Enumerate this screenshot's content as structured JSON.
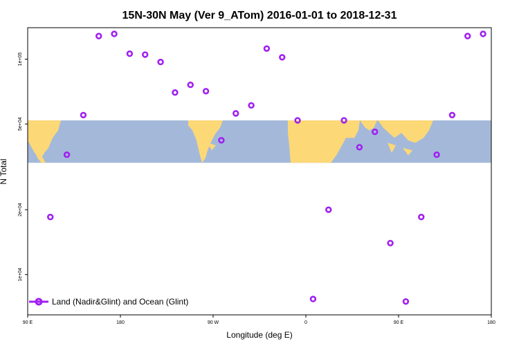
{
  "chart_data": {
    "type": "scatter",
    "title": "15N-30N May (Ver 9_ATom)   2016-01-01 to 2018-12-31",
    "xlabel": "Longitude (deg E)",
    "ylabel": "N Total",
    "x_ticks": [
      {
        "value": 90,
        "label": "90 E"
      },
      {
        "value": 180,
        "label": "180"
      },
      {
        "value": 270,
        "label": "90 W"
      },
      {
        "value": 360,
        "label": "0"
      },
      {
        "value": 450,
        "label": "90 E"
      },
      {
        "value": 540,
        "label": "180"
      }
    ],
    "xlim": [
      90,
      540
    ],
    "y_scale": "log",
    "y_ticks": [
      {
        "value": 10000,
        "label": "1e+04"
      },
      {
        "value": 20000,
        "label": "2e+04"
      },
      {
        "value": 50000,
        "label": "5e+04"
      },
      {
        "value": 100000,
        "label": "1e+05"
      }
    ],
    "ylim": [
      6500,
      140000
    ],
    "map_band": {
      "y_range": [
        33000,
        52000
      ],
      "ocean_color": "#a4b9da",
      "land_color": "#fdd876"
    },
    "series": [
      {
        "name": "Land (Nadir&Glint) and Ocean (Glint)",
        "color": "#a020f0",
        "x": [
          112,
          128,
          144,
          159,
          174,
          189,
          204,
          219,
          233,
          248,
          263,
          278,
          292,
          307,
          322,
          337,
          352,
          367,
          382,
          397,
          412,
          427,
          442,
          457,
          472,
          487,
          502,
          517,
          532
        ],
        "y": [
          18500,
          36000,
          55000,
          128000,
          131000,
          106000,
          105000,
          97000,
          70000,
          76000,
          71000,
          42000,
          56000,
          61000,
          112000,
          102000,
          52000,
          7700,
          20000,
          52000,
          39000,
          46000,
          14000,
          7500,
          18500,
          36000,
          55000,
          128000,
          131000
        ]
      }
    ],
    "legend": {
      "position": "bottom-left"
    },
    "grid": false
  }
}
